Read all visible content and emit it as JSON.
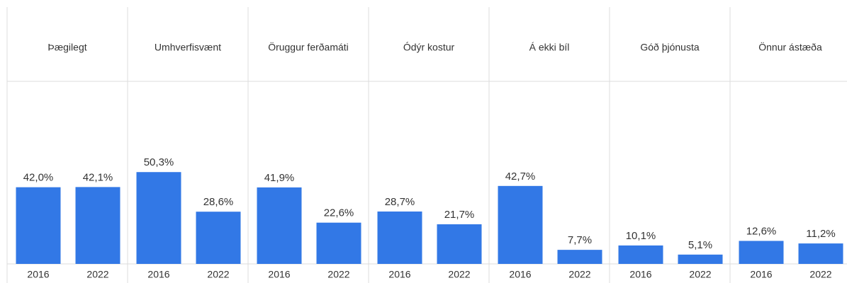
{
  "chart_data": [
    {
      "type": "bar",
      "title": "Þægilegt",
      "categories": [
        "2016",
        "2022"
      ],
      "values": [
        42.0,
        42.1
      ],
      "value_labels": [
        "42,0%",
        "42,1%"
      ],
      "color": "#3278e6",
      "ylim": [
        0,
        100
      ]
    },
    {
      "type": "bar",
      "title": "Umhverfisvænt",
      "categories": [
        "2016",
        "2022"
      ],
      "values": [
        50.3,
        28.6
      ],
      "value_labels": [
        "50,3%",
        "28,6%"
      ],
      "color": "#3278e6",
      "ylim": [
        0,
        100
      ]
    },
    {
      "type": "bar",
      "title": "Öruggur ferðamáti",
      "categories": [
        "2016",
        "2022"
      ],
      "values": [
        41.9,
        22.6
      ],
      "value_labels": [
        "41,9%",
        "22,6%"
      ],
      "color": "#3278e6",
      "ylim": [
        0,
        100
      ]
    },
    {
      "type": "bar",
      "title": "Ódýr kostur",
      "categories": [
        "2016",
        "2022"
      ],
      "values": [
        28.7,
        21.7
      ],
      "value_labels": [
        "28,7%",
        "21,7%"
      ],
      "color": "#3278e6",
      "ylim": [
        0,
        100
      ]
    },
    {
      "type": "bar",
      "title": "Á ekki bíl",
      "categories": [
        "2016",
        "2022"
      ],
      "values": [
        42.7,
        7.7
      ],
      "value_labels": [
        "42,7%",
        "7,7%"
      ],
      "color": "#3278e6",
      "ylim": [
        0,
        100
      ]
    },
    {
      "type": "bar",
      "title": "Góð þjónusta",
      "categories": [
        "2016",
        "2022"
      ],
      "values": [
        10.1,
        5.1
      ],
      "value_labels": [
        "10,1%",
        "5,1%"
      ],
      "color": "#3278e6",
      "ylim": [
        0,
        100
      ]
    },
    {
      "type": "bar",
      "title": "Önnur ástæða",
      "categories": [
        "2016",
        "2022"
      ],
      "values": [
        12.6,
        11.2
      ],
      "value_labels": [
        "12,6%",
        "11,2%"
      ],
      "color": "#3278e6",
      "ylim": [
        0,
        100
      ]
    }
  ]
}
